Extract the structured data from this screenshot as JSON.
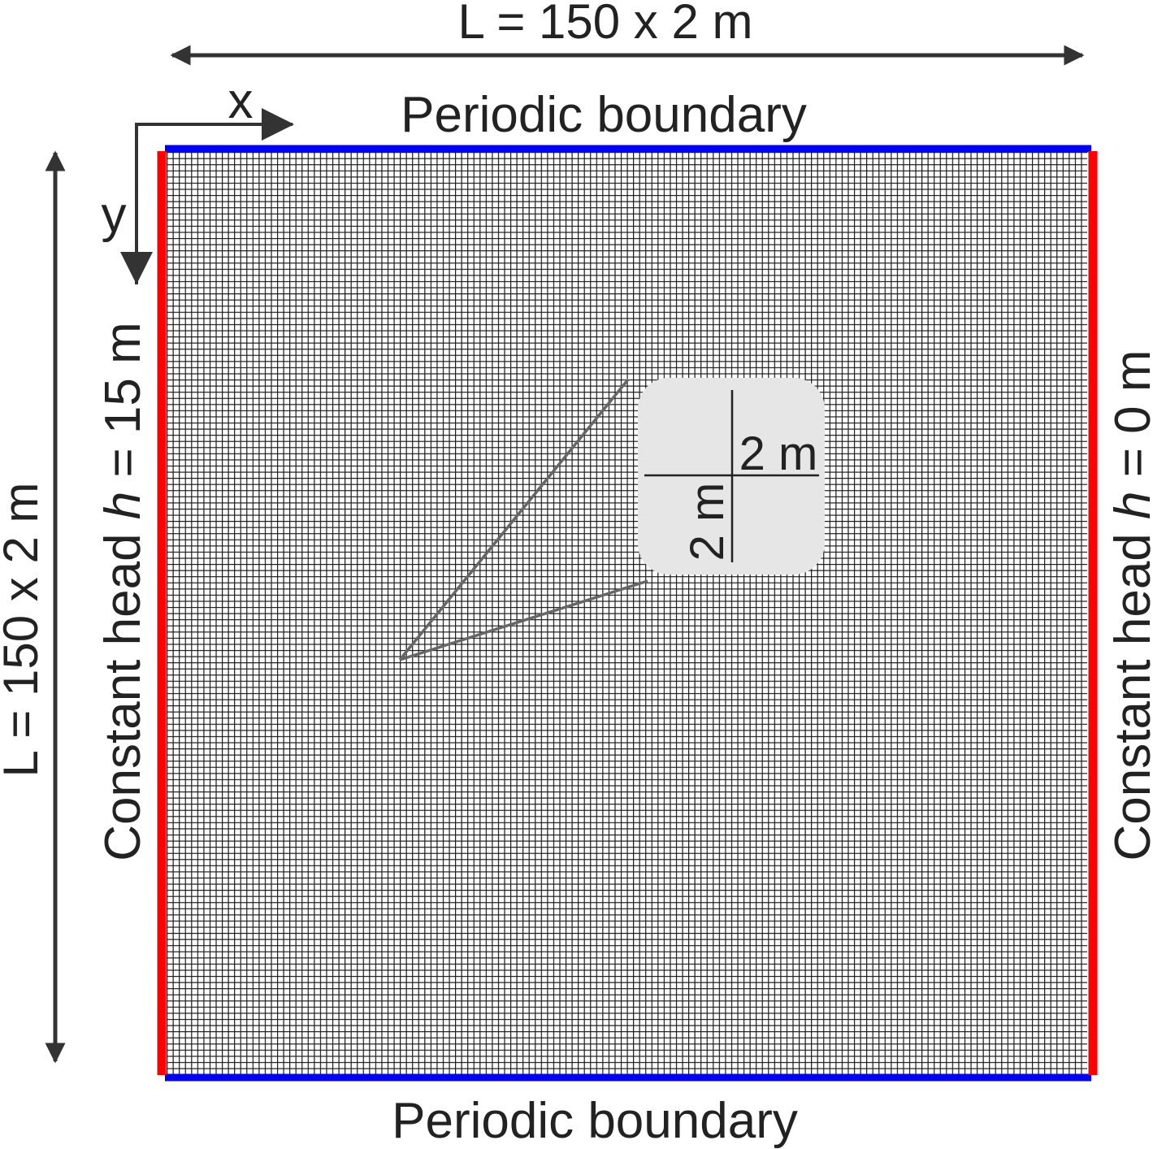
{
  "top_length": "L = 150 x 2 m",
  "top_boundary": "Periodic boundary",
  "bottom_boundary": "Periodic boundary",
  "axis_x": "x",
  "axis_y": "y",
  "left_length": "L = 150 x 2 m",
  "left_condition": {
    "prefix": "Constant head ",
    "var": "h",
    "suffix": " = 15 m"
  },
  "right_condition": {
    "prefix": "Constant head ",
    "var": "h",
    "suffix": " = 0 m"
  },
  "inset": {
    "cell_width": "2 m",
    "cell_height": "2 m"
  }
}
